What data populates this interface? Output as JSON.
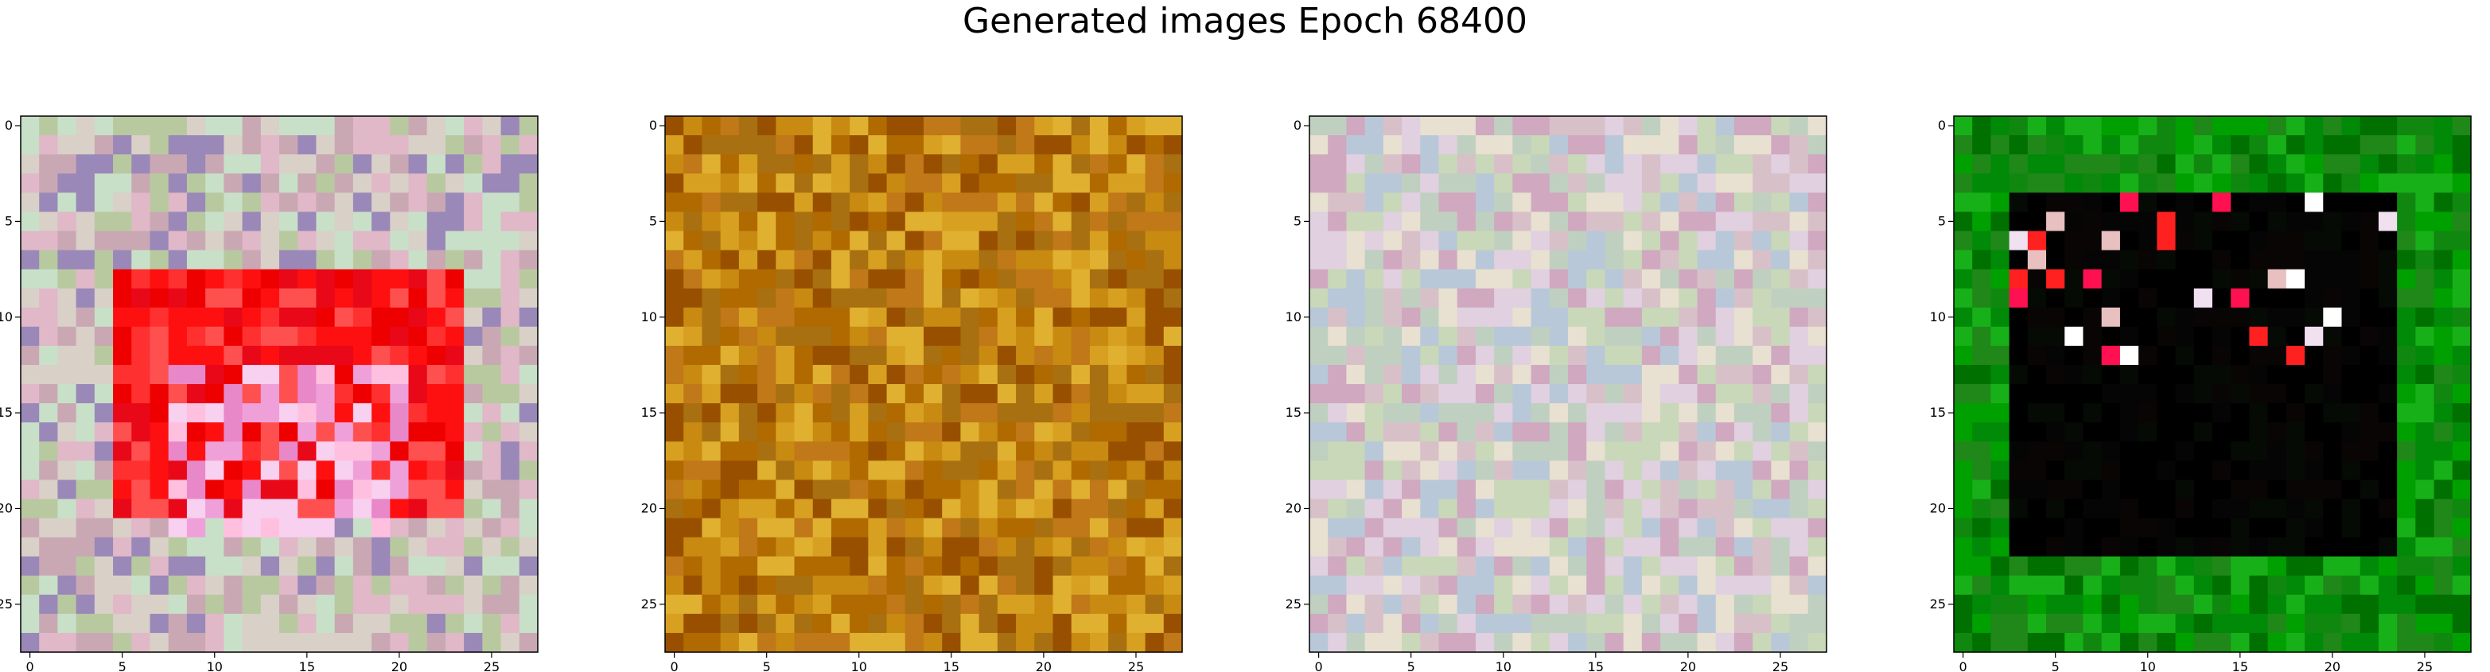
{
  "figure": {
    "title": "Generated images Epoch 68400"
  },
  "chart_data": [
    {
      "type": "heatmap",
      "grid_size": 28,
      "description_colors": {
        "background": [
          "#c9a8b4",
          "#b8c9a0",
          "#d9d0c8",
          "#9a88b8",
          "#c8e0c8",
          "#e0b8c8"
        ],
        "block": [
          "#ff1010",
          "#ee0000",
          "#ff3030",
          "#ff5050",
          "#e80818"
        ],
        "inner": [
          "#f0a0d8",
          "#ffc0e0",
          "#f8d0f0",
          "#e888c8"
        ]
      },
      "block_rows": [
        8,
        20
      ],
      "block_cols": [
        5,
        23
      ],
      "inner_rows": [
        13,
        21
      ],
      "inner_cols": [
        8,
        20
      ],
      "x_ticks": [
        0,
        5,
        10,
        15,
        20,
        25
      ],
      "y_ticks": [
        0,
        5,
        10,
        15,
        20,
        25
      ],
      "xlim": [
        -0.5,
        27.5
      ],
      "ylim": [
        27.5,
        -0.5
      ]
    },
    {
      "type": "heatmap",
      "grid_size": 28,
      "description_colors": {
        "background": [
          "#c88a10",
          "#b06a00",
          "#d8a020",
          "#a87010",
          "#e0b030",
          "#985000",
          "#c07818"
        ]
      },
      "x_ticks": [
        0,
        5,
        10,
        15,
        20,
        25
      ],
      "y_ticks": [
        0,
        5,
        10,
        15,
        20,
        25
      ],
      "xlim": [
        -0.5,
        27.5
      ],
      "ylim": [
        27.5,
        -0.5
      ]
    },
    {
      "type": "heatmap",
      "grid_size": 28,
      "description_colors": {
        "background": [
          "#d8c0c8",
          "#c8d8b8",
          "#e0d0e0",
          "#b8c8d8",
          "#d0a8c0",
          "#c0d0c0",
          "#e8e0d0"
        ]
      },
      "x_ticks": [
        0,
        5,
        10,
        15,
        20,
        25
      ],
      "y_ticks": [
        0,
        5,
        10,
        15,
        20,
        25
      ],
      "xlim": [
        -0.5,
        27.5
      ],
      "ylim": [
        27.5,
        -0.5
      ]
    },
    {
      "type": "heatmap",
      "grid_size": 28,
      "description_colors": {
        "background": [
          "#108810",
          "#00a000",
          "#208818",
          "#007000",
          "#18b018",
          "#008a08"
        ],
        "block": [
          "#000000",
          "#050505",
          "#0a0505",
          "#000000",
          "#050a05"
        ],
        "accent": [
          "#ffffff",
          "#f0e0f0",
          "#ff2020",
          "#e8c0c0",
          "#ff1050"
        ]
      },
      "block_rows": [
        4,
        22
      ],
      "block_cols": [
        3,
        23
      ],
      "accent_rows": [
        4,
        12
      ],
      "x_ticks": [
        0,
        5,
        10,
        15,
        20,
        25
      ],
      "y_ticks": [
        0,
        5,
        10,
        15,
        20,
        25
      ],
      "xlim": [
        -0.5,
        27.5
      ],
      "ylim": [
        27.5,
        -0.5
      ]
    }
  ]
}
